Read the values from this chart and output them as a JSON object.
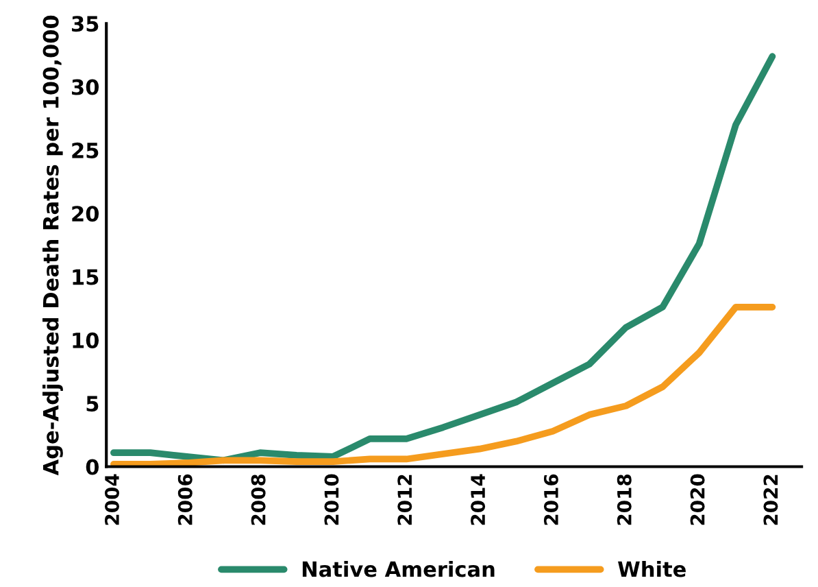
{
  "chart_data": {
    "type": "line",
    "ylabel": "Age-Adjusted Death Rates per 100,000",
    "x": [
      2004,
      2005,
      2006,
      2007,
      2008,
      2009,
      2010,
      2011,
      2012,
      2013,
      2014,
      2015,
      2016,
      2017,
      2018,
      2019,
      2020,
      2021,
      2022
    ],
    "series": [
      {
        "name": "Native American",
        "color": "#2a8a6c",
        "values": [
          1.1,
          1.1,
          0.8,
          0.5,
          1.1,
          0.9,
          0.8,
          2.2,
          2.2,
          3.1,
          4.1,
          5.1,
          6.6,
          8.1,
          11,
          12.6,
          17.6,
          27,
          32.4
        ]
      },
      {
        "name": "White",
        "color": "#f59c1e",
        "values": [
          0.2,
          0.2,
          0.3,
          0.5,
          0.5,
          0.4,
          0.4,
          0.6,
          0.6,
          1.0,
          1.4,
          2.0,
          2.8,
          4.1,
          4.8,
          6.3,
          9.0,
          12.6,
          12.6
        ]
      }
    ],
    "xlim": [
      2003.8,
      2022.8
    ],
    "xticks": [
      2004,
      2006,
      2008,
      2010,
      2012,
      2014,
      2016,
      2018,
      2020,
      2022
    ],
    "ylim": [
      0,
      35
    ],
    "yticks": [
      0,
      5,
      10,
      15,
      20,
      25,
      30,
      35
    ],
    "grid": false,
    "legend": "bottom",
    "marker": "none",
    "line_style": "solid"
  }
}
